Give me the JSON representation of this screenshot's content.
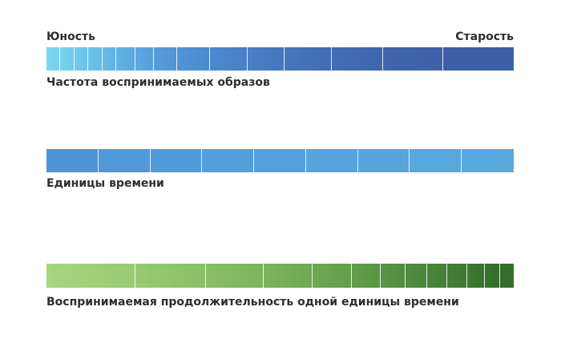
{
  "labels": {
    "youth": "Юность",
    "old_age": "Старость",
    "frequency": "Частота воспринимаемых образов",
    "time_units": "Единицы времени",
    "perceived_duration": "Воспринимаемая продолжительность одной единицы времени"
  },
  "bars": {
    "frequency": {
      "segments": [
        3,
        3,
        3,
        3,
        3,
        4,
        4,
        5,
        7,
        8,
        8,
        10,
        11,
        13,
        15
      ],
      "colors": [
        "#79d8ef",
        "#75d2ee",
        "#6fcbec",
        "#6ac3ea",
        "#65bce8",
        "#5fb3e5",
        "#5aa9e1",
        "#559fdc",
        "#5094d6",
        "#4b89cf",
        "#4780c7",
        "#4476be",
        "#416db6",
        "#3f66ae",
        "#3e5fa8"
      ],
      "gradient": true
    },
    "time_units": {
      "segments": [
        1,
        1,
        1,
        1,
        1,
        1,
        1,
        1,
        1
      ],
      "colors": [
        "#4f94d6",
        "#5198d8",
        "#529bda",
        "#549edb",
        "#55a0dc",
        "#57a3dd",
        "#58a5de",
        "#59a7df",
        "#5aa9e0"
      ],
      "gradient": false
    },
    "perceived_duration": {
      "segments": [
        20,
        16,
        13,
        11,
        9,
        6.5,
        5.5,
        5,
        4.5,
        4.5,
        4,
        3.5,
        3
      ],
      "colors": [
        "#a6d67f",
        "#97cb72",
        "#89bf66",
        "#7bb45b",
        "#6ea951",
        "#639f49",
        "#599643",
        "#508d3e",
        "#498639",
        "#437f35",
        "#3d7931",
        "#38732e",
        "#336e2b"
      ],
      "gradient": true
    }
  }
}
